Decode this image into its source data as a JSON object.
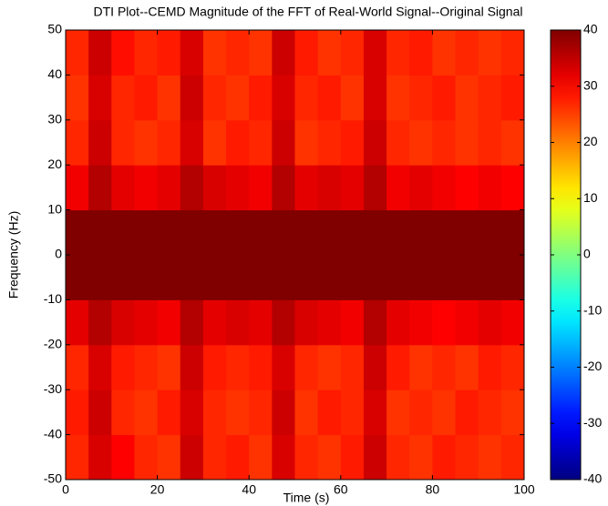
{
  "chart_data": {
    "type": "heatmap",
    "title": "DTI Plot--CEMD Magnitude of the FFT of Real-World Signal--Original Signal",
    "xlabel": "Time (s)",
    "ylabel": "Frequency (Hz)",
    "x": [
      2.5,
      7.5,
      12.5,
      17.5,
      22.5,
      27.5,
      32.5,
      37.5,
      42.5,
      47.5,
      52.5,
      57.5,
      62.5,
      67.5,
      72.5,
      77.5,
      82.5,
      87.5,
      92.5,
      97.5
    ],
    "y": [
      -45,
      -35,
      -25,
      -15,
      -5,
      5,
      15,
      25,
      35,
      45
    ],
    "z": [
      [
        27,
        33,
        30,
        27,
        26,
        34,
        27,
        28,
        26,
        33,
        27,
        26,
        28,
        34,
        27,
        26,
        28,
        27,
        26,
        27
      ],
      [
        28,
        34,
        27,
        26,
        28,
        33,
        27,
        26,
        27,
        34,
        26,
        28,
        27,
        33,
        26,
        27,
        26,
        28,
        27,
        26
      ],
      [
        27,
        33,
        28,
        27,
        26,
        34,
        28,
        27,
        28,
        33,
        27,
        26,
        27,
        34,
        28,
        26,
        27,
        26,
        28,
        27
      ],
      [
        32,
        36,
        33,
        32,
        31,
        36,
        32,
        33,
        32,
        36,
        33,
        32,
        31,
        36,
        32,
        31,
        30,
        31,
        32,
        31
      ],
      [
        40,
        40,
        40,
        40,
        40,
        40,
        40,
        40,
        40,
        40,
        40,
        40,
        40,
        40,
        40,
        40,
        40,
        40,
        40,
        40
      ],
      [
        40,
        40,
        40,
        40,
        40,
        40,
        40,
        40,
        40,
        40,
        40,
        40,
        40,
        40,
        40,
        40,
        40,
        40,
        40,
        40
      ],
      [
        31,
        36,
        32,
        31,
        32,
        36,
        33,
        32,
        31,
        36,
        32,
        33,
        32,
        36,
        31,
        32,
        31,
        30,
        31,
        30
      ],
      [
        27,
        34,
        27,
        26,
        27,
        33,
        26,
        28,
        27,
        34,
        26,
        27,
        28,
        34,
        27,
        26,
        27,
        26,
        27,
        26
      ],
      [
        26,
        33,
        27,
        28,
        26,
        34,
        27,
        26,
        28,
        33,
        27,
        28,
        26,
        33,
        26,
        27,
        28,
        26,
        27,
        28
      ],
      [
        27,
        34,
        29,
        27,
        28,
        33,
        26,
        27,
        26,
        34,
        28,
        26,
        27,
        33,
        27,
        28,
        26,
        27,
        26,
        27
      ]
    ],
    "colormap": "jet",
    "clim": [
      -40,
      40
    ],
    "xlim": [
      0,
      100
    ],
    "xticks": [
      0,
      20,
      40,
      60,
      80,
      100
    ],
    "ylim": [
      -50,
      50
    ],
    "yticks": [
      -50,
      -40,
      -30,
      -20,
      -10,
      0,
      10,
      20,
      30,
      40,
      50
    ],
    "cticks": [
      -40,
      -30,
      -20,
      -10,
      0,
      10,
      20,
      30,
      40
    ]
  }
}
